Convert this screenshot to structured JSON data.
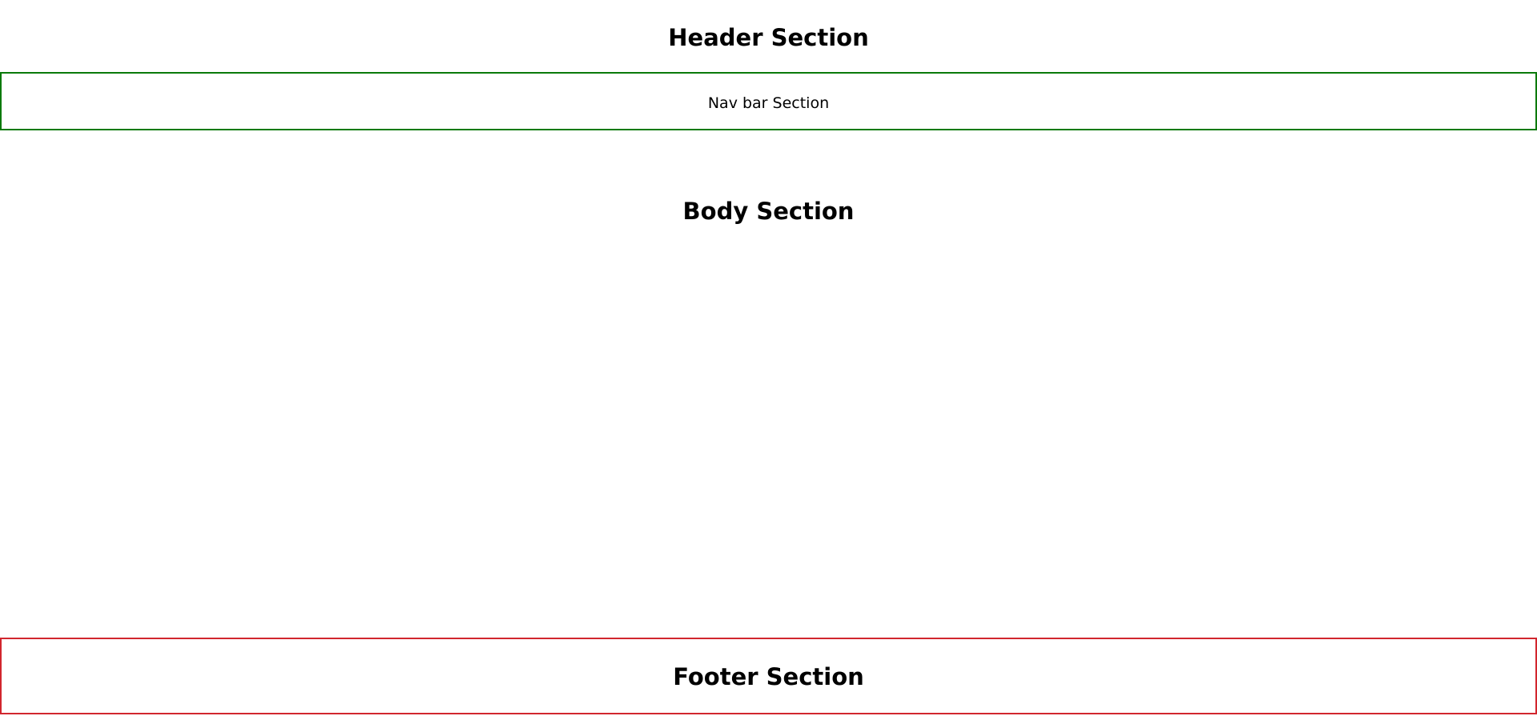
{
  "header": {
    "title": "Header Section"
  },
  "navbar": {
    "label": "Nav bar Section",
    "border_color": "#0a7a0a"
  },
  "body": {
    "title": "Body Section"
  },
  "footer": {
    "title": "Footer Section",
    "border_color": "#d1262e"
  }
}
